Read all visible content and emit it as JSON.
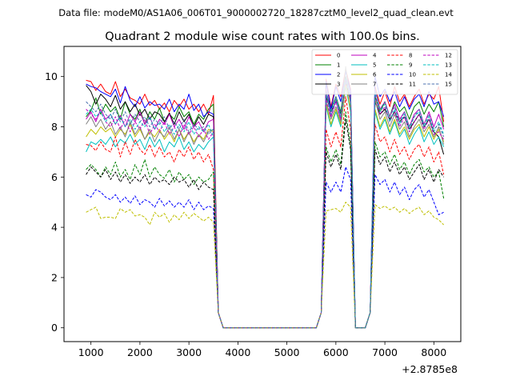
{
  "suptitle": "Data file: modeM0/AS1A06_006T01_9000002720_18287cztM0_level2_quad_clean.evt",
  "chart_data": {
    "type": "line",
    "title": "Quadrant 2 module wise count rates with 100.0s bins.",
    "xlabel": "",
    "ylabel": "",
    "x_offset_label": "+2.8785e8",
    "xlim": [
      450,
      8550
    ],
    "ylim": [
      -0.55,
      11.2
    ],
    "xticks": [
      1000,
      2000,
      3000,
      4000,
      5000,
      6000,
      7000,
      8000
    ],
    "yticks": [
      0,
      2,
      4,
      6,
      8,
      10
    ],
    "x": [
      900,
      1000,
      1100,
      1200,
      1300,
      1400,
      1500,
      1600,
      1700,
      1800,
      1900,
      2000,
      2100,
      2200,
      2300,
      2400,
      2500,
      2600,
      2700,
      2800,
      2900,
      3000,
      3100,
      3200,
      3300,
      3400,
      3500,
      3600,
      3700,
      5600,
      5700,
      5800,
      5900,
      6000,
      6100,
      6200,
      6300,
      6400,
      6500,
      6600,
      6700,
      6800,
      6900,
      7000,
      7100,
      7200,
      7300,
      7400,
      7500,
      7600,
      7700,
      7800,
      7900,
      8000,
      8100,
      8200
    ],
    "legend_position": "top-right",
    "series": [
      {
        "name": "0",
        "color": "#ff0000",
        "dash": "solid",
        "values": [
          9.85,
          9.8,
          9.45,
          9.7,
          9.4,
          9.3,
          9.8,
          9.2,
          9.5,
          9.15,
          9.05,
          8.9,
          9.3,
          8.85,
          9.05,
          8.7,
          8.95,
          8.6,
          9.05,
          8.8,
          9.1,
          8.7,
          8.9,
          8.6,
          8.9,
          8.5,
          9.25,
          0.6,
          0,
          0,
          0.6,
          9.9,
          8.8,
          9.7,
          9.2,
          10.3,
          9.5,
          0,
          0,
          0,
          0.6,
          9.6,
          8.9,
          9.4,
          8.8,
          9.6,
          9.0,
          9.3,
          8.8,
          9.2,
          9.5,
          8.9,
          9.3,
          9.1,
          9.6,
          8.2
        ]
      },
      {
        "name": "1",
        "color": "#008000",
        "dash": "solid",
        "values": [
          8.4,
          8.65,
          9.15,
          8.5,
          8.9,
          8.6,
          8.8,
          8.3,
          9.0,
          8.5,
          8.3,
          8.7,
          8.1,
          8.6,
          8.3,
          8.75,
          8.2,
          8.5,
          8.3,
          8.8,
          8.4,
          8.6,
          8.1,
          8.5,
          8.3,
          8.7,
          8.9,
          0.6,
          0,
          0,
          0.6,
          9.4,
          8.7,
          9.2,
          8.6,
          10.0,
          9.1,
          0,
          0,
          0,
          0.6,
          9.2,
          8.6,
          9.0,
          8.4,
          9.0,
          8.6,
          8.8,
          8.3,
          8.8,
          9.0,
          8.5,
          8.9,
          8.6,
          9.0,
          8.0
        ]
      },
      {
        "name": "2",
        "color": "#0000ff",
        "dash": "solid",
        "values": [
          9.7,
          9.6,
          9.55,
          9.4,
          9.3,
          9.2,
          9.5,
          8.95,
          9.6,
          9.05,
          8.8,
          9.2,
          8.75,
          9.0,
          8.85,
          8.9,
          8.7,
          9.1,
          8.6,
          8.9,
          8.7,
          9.3,
          8.65,
          8.9,
          8.4,
          8.6,
          8.5,
          0.6,
          0,
          0,
          0.6,
          9.8,
          8.7,
          9.6,
          9.0,
          10.2,
          9.4,
          0,
          0,
          0,
          0.6,
          10.0,
          9.2,
          9.5,
          9.0,
          9.4,
          8.8,
          9.2,
          8.7,
          9.1,
          9.3,
          8.8,
          9.4,
          8.9,
          9.0,
          8.4
        ]
      },
      {
        "name": "3",
        "color": "#000000",
        "dash": "solid",
        "values": [
          9.65,
          9.4,
          8.9,
          9.3,
          9.1,
          8.8,
          9.25,
          8.7,
          9.0,
          8.6,
          8.9,
          8.45,
          8.7,
          8.3,
          8.6,
          8.5,
          8.2,
          8.55,
          8.1,
          8.6,
          8.2,
          8.5,
          8.0,
          8.4,
          8.1,
          8.5,
          8.4,
          0.6,
          0,
          0,
          0.6,
          9.2,
          8.6,
          9.0,
          8.5,
          9.8,
          9.0,
          0,
          0,
          0,
          0.6,
          9.0,
          8.5,
          8.7,
          8.3,
          8.6,
          8.2,
          8.4,
          7.9,
          8.2,
          8.5,
          8.0,
          8.3,
          7.8,
          7.6,
          6.9
        ]
      },
      {
        "name": "4",
        "color": "#bf00bf",
        "dash": "solid",
        "values": [
          8.3,
          8.6,
          8.2,
          8.7,
          8.3,
          8.5,
          8.1,
          8.45,
          8.0,
          8.5,
          8.2,
          8.6,
          8.1,
          8.4,
          7.9,
          8.3,
          8.1,
          8.5,
          8.0,
          8.3,
          7.9,
          8.4,
          8.0,
          8.2,
          7.8,
          8.2,
          8.3,
          0.6,
          0,
          0,
          0.6,
          9.5,
          8.4,
          9.1,
          8.3,
          9.9,
          9.2,
          0,
          0,
          0,
          0.6,
          9.5,
          8.7,
          9.0,
          8.4,
          8.9,
          8.3,
          8.6,
          8.0,
          8.5,
          8.7,
          8.1,
          8.6,
          8.0,
          8.5,
          7.9
        ]
      },
      {
        "name": "5",
        "color": "#00bfbf",
        "dash": "solid",
        "values": [
          7.0,
          7.4,
          7.3,
          7.5,
          7.3,
          7.6,
          7.2,
          7.5,
          7.35,
          7.7,
          7.3,
          7.5,
          7.1,
          7.6,
          7.2,
          7.5,
          7.0,
          7.4,
          7.2,
          7.6,
          7.1,
          7.4,
          7.0,
          7.3,
          7.1,
          7.4,
          7.6,
          0.6,
          0,
          0,
          0.6,
          8.8,
          8.0,
          8.6,
          8.0,
          9.6,
          8.6,
          0,
          0,
          0,
          0.6,
          8.6,
          7.9,
          8.3,
          7.7,
          8.2,
          7.6,
          7.9,
          7.3,
          7.7,
          8.0,
          7.4,
          7.8,
          7.3,
          7.6,
          7.2
        ]
      },
      {
        "name": "6",
        "color": "#bfbf00",
        "dash": "solid",
        "values": [
          7.6,
          7.9,
          7.7,
          8.0,
          7.8,
          7.95,
          7.6,
          7.9,
          7.7,
          8.1,
          7.6,
          7.9,
          7.5,
          7.8,
          7.6,
          7.9,
          7.5,
          7.8,
          7.4,
          7.9,
          7.5,
          7.8,
          7.4,
          7.7,
          7.5,
          7.9,
          7.8,
          0.6,
          0,
          0,
          0.6,
          8.9,
          8.1,
          8.7,
          8.1,
          9.7,
          8.7,
          0,
          0,
          0,
          0.6,
          8.7,
          8.0,
          8.4,
          7.8,
          8.3,
          7.7,
          8.0,
          7.5,
          7.9,
          8.1,
          7.6,
          8.0,
          7.5,
          7.9,
          7.4
        ]
      },
      {
        "name": "7",
        "color": "#808080",
        "dash": "solid",
        "values": [
          8.1,
          8.4,
          8.0,
          8.3,
          7.9,
          8.2,
          7.7,
          8.0,
          7.6,
          8.2,
          7.7,
          8.0,
          7.5,
          7.9,
          7.4,
          7.8,
          7.6,
          8.0,
          7.5,
          7.9,
          7.4,
          7.8,
          7.3,
          7.7,
          7.4,
          7.8,
          7.9,
          0.6,
          0,
          0,
          0.6,
          9.0,
          8.3,
          8.8,
          8.2,
          10.4,
          8.9,
          0,
          0,
          0,
          0.6,
          9.1,
          8.3,
          8.6,
          8.0,
          8.5,
          7.9,
          8.2,
          7.6,
          8.0,
          8.3,
          7.8,
          8.1,
          7.6,
          8.0,
          7.3
        ]
      },
      {
        "name": "8",
        "color": "#ff0000",
        "dash": "dashed",
        "values": [
          7.3,
          7.25,
          7.05,
          7.4,
          7.1,
          7.0,
          7.6,
          6.8,
          7.4,
          6.9,
          7.5,
          7.1,
          6.9,
          7.3,
          6.8,
          7.2,
          6.8,
          7.0,
          6.6,
          7.1,
          6.8,
          7.2,
          6.7,
          7.0,
          6.6,
          6.9,
          6.3,
          0.6,
          0,
          0,
          0.6,
          7.9,
          7.2,
          7.8,
          7.2,
          9.2,
          7.9,
          0,
          0,
          0,
          0.6,
          8.1,
          7.4,
          7.6,
          7.0,
          7.5,
          6.9,
          7.2,
          6.7,
          7.1,
          7.3,
          6.8,
          7.2,
          6.6,
          7.0,
          6.1
        ]
      },
      {
        "name": "9",
        "color": "#008000",
        "dash": "dashed",
        "values": [
          6.3,
          6.5,
          6.3,
          6.0,
          6.4,
          6.1,
          6.6,
          6.0,
          6.3,
          5.9,
          6.5,
          6.1,
          6.7,
          6.0,
          6.4,
          6.1,
          5.95,
          6.3,
          5.8,
          6.2,
          5.9,
          6.1,
          5.7,
          6.0,
          5.8,
          5.9,
          6.2,
          0.6,
          0,
          0,
          0.6,
          7.2,
          6.6,
          7.1,
          6.5,
          8.6,
          7.3,
          0,
          0,
          0,
          0.6,
          7.4,
          6.8,
          7.0,
          6.5,
          6.9,
          6.3,
          6.6,
          6.1,
          6.5,
          6.7,
          6.2,
          6.4,
          6.0,
          6.2,
          5.15
        ]
      },
      {
        "name": "10",
        "color": "#0000ff",
        "dash": "dashed",
        "values": [
          5.3,
          5.2,
          5.5,
          5.4,
          5.2,
          5.1,
          5.3,
          5.0,
          5.2,
          4.95,
          5.25,
          4.9,
          5.1,
          5.0,
          4.8,
          5.15,
          4.85,
          5.05,
          4.8,
          5.0,
          4.8,
          5.1,
          4.7,
          5.0,
          4.7,
          4.85,
          4.75,
          0.6,
          0,
          0,
          0.6,
          5.8,
          5.4,
          5.8,
          5.4,
          6.4,
          5.9,
          0,
          0,
          0,
          0.6,
          6.1,
          5.7,
          5.9,
          5.4,
          5.8,
          5.3,
          5.6,
          5.1,
          5.5,
          5.7,
          5.2,
          5.5,
          5.0,
          4.5,
          4.6
        ]
      },
      {
        "name": "11",
        "color": "#000000",
        "dash": "dashed",
        "values": [
          6.1,
          6.4,
          6.2,
          6.0,
          6.3,
          5.9,
          6.2,
          5.8,
          6.1,
          5.75,
          6.0,
          5.8,
          6.1,
          5.7,
          6.0,
          5.8,
          5.9,
          5.7,
          6.0,
          5.8,
          5.9,
          5.6,
          5.9,
          5.5,
          5.8,
          5.6,
          5.5,
          0.6,
          0,
          0,
          0.6,
          7.0,
          6.4,
          6.9,
          6.3,
          8.3,
          7.1,
          0,
          0,
          0,
          0.6,
          7.1,
          6.5,
          6.8,
          6.2,
          6.6,
          6.1,
          6.4,
          5.9,
          6.2,
          6.5,
          5.9,
          6.3,
          5.8,
          6.3,
          6.0
        ]
      },
      {
        "name": "12",
        "color": "#bf00bf",
        "dash": "dashed",
        "values": [
          8.7,
          8.5,
          8.3,
          8.6,
          8.2,
          8.0,
          8.4,
          7.9,
          8.3,
          7.8,
          8.2,
          7.9,
          8.3,
          7.7,
          8.1,
          7.8,
          8.2,
          7.7,
          8.0,
          7.6,
          8.1,
          7.7,
          8.0,
          7.6,
          7.9,
          7.5,
          7.8,
          0.6,
          0,
          0,
          0.6,
          9.1,
          8.4,
          9.0,
          8.3,
          9.8,
          9.0,
          0,
          0,
          0,
          0.6,
          9.3,
          8.5,
          8.8,
          8.2,
          8.6,
          8.0,
          8.4,
          7.8,
          8.2,
          8.5,
          7.9,
          8.3,
          7.7,
          7.8,
          7.5
        ]
      },
      {
        "name": "13",
        "color": "#00bfbf",
        "dash": "dashed",
        "values": [
          8.5,
          8.7,
          8.4,
          8.6,
          8.2,
          8.5,
          8.1,
          8.4,
          8.0,
          8.3,
          7.9,
          8.2,
          8.0,
          8.4,
          7.9,
          8.2,
          7.8,
          8.1,
          7.7,
          8.1,
          7.8,
          8.2,
          7.7,
          8.0,
          7.8,
          8.1,
          7.6,
          0.6,
          0,
          0,
          0.6,
          9.3,
          8.5,
          9.1,
          8.4,
          9.9,
          9.1,
          0,
          0,
          0,
          0.6,
          9.4,
          8.6,
          8.9,
          8.2,
          8.7,
          8.1,
          8.5,
          7.9,
          8.4,
          8.6,
          8.0,
          8.4,
          7.8,
          8.2,
          7.7
        ]
      },
      {
        "name": "14",
        "color": "#bfbf00",
        "dash": "dashed",
        "values": [
          4.6,
          4.7,
          4.8,
          4.35,
          4.4,
          4.4,
          4.35,
          4.75,
          4.6,
          4.7,
          4.45,
          4.5,
          4.4,
          4.1,
          4.6,
          4.4,
          4.55,
          4.2,
          4.5,
          4.3,
          4.6,
          4.35,
          4.55,
          4.4,
          4.25,
          4.4,
          4.2,
          0.6,
          0,
          0,
          0.6,
          4.65,
          4.7,
          4.75,
          4.6,
          5.0,
          4.8,
          0,
          0,
          0,
          0.6,
          4.9,
          4.75,
          4.85,
          4.7,
          4.8,
          4.6,
          4.75,
          4.55,
          4.7,
          4.8,
          4.5,
          4.65,
          4.4,
          4.3,
          4.1
        ]
      },
      {
        "name": "15",
        "color": "#4c72b0",
        "dash": "dashed",
        "values": [
          9.0,
          8.8,
          8.6,
          8.9,
          8.5,
          8.3,
          8.7,
          8.2,
          8.6,
          8.1,
          8.5,
          8.2,
          8.4,
          8.0,
          8.3,
          8.1,
          8.4,
          7.9,
          8.2,
          7.9,
          8.3,
          7.8,
          8.1,
          7.9,
          8.0,
          7.7,
          7.9,
          0.6,
          0,
          0,
          0.6,
          9.4,
          8.6,
          9.2,
          8.5,
          10.0,
          9.2,
          0,
          0,
          0,
          0.6,
          9.5,
          8.7,
          9.0,
          8.4,
          8.8,
          8.2,
          8.6,
          8.0,
          8.4,
          8.7,
          8.1,
          8.5,
          7.9,
          8.1,
          7.6
        ]
      }
    ]
  }
}
